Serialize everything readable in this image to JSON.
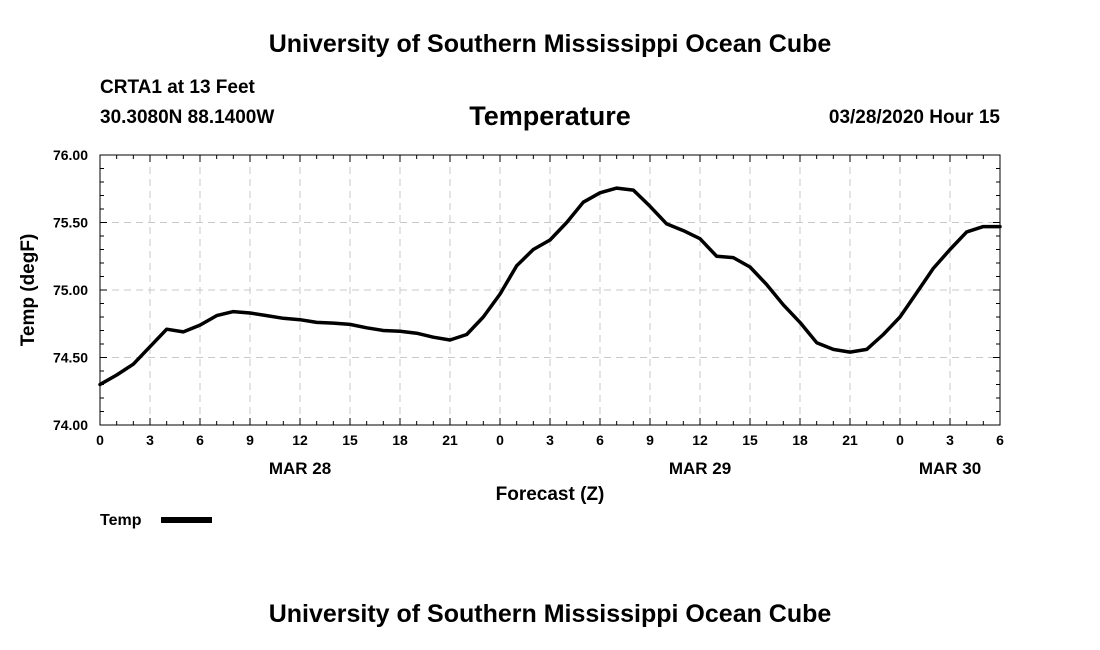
{
  "header": {
    "title": "University of Southern Mississippi Ocean Cube",
    "station": "CRTA1 at 13 Feet",
    "coords": "30.3080N 88.1400W",
    "datetime": "03/28/2020 Hour 15"
  },
  "footer": {
    "title": "University of Southern Mississippi Ocean Cube"
  },
  "chart_data": {
    "type": "line",
    "title": "Temperature",
    "xlabel": "Forecast (Z)",
    "ylabel": "Temp (degF)",
    "ylim": [
      74.0,
      76.0
    ],
    "xlim": [
      0,
      54
    ],
    "y_ticks": [
      74.0,
      74.5,
      75.0,
      75.5,
      76.0
    ],
    "y_tick_labels": [
      "74.00",
      "74.50",
      "75.00",
      "75.50",
      "76.00"
    ],
    "x_tick_hours": [
      0,
      3,
      6,
      9,
      12,
      15,
      18,
      21,
      24,
      27,
      30,
      33,
      36,
      39,
      42,
      45,
      48,
      51,
      54
    ],
    "x_tick_labels": [
      "0",
      "3",
      "6",
      "9",
      "12",
      "15",
      "18",
      "21",
      "0",
      "3",
      "6",
      "9",
      "12",
      "15",
      "18",
      "21",
      "0",
      "3",
      "6"
    ],
    "day_labels": [
      {
        "label": "MAR 28",
        "hour": 12
      },
      {
        "label": "MAR 29",
        "hour": 36
      },
      {
        "label": "MAR 30",
        "hour": 51
      }
    ],
    "grid": true,
    "legend_position": "bottom-left",
    "series": [
      {
        "name": "Temp",
        "color": "#000000",
        "x": [
          0,
          1,
          2,
          3,
          4,
          5,
          6,
          7,
          8,
          9,
          10,
          11,
          12,
          13,
          14,
          15,
          16,
          17,
          18,
          19,
          20,
          21,
          22,
          23,
          24,
          25,
          26,
          27,
          28,
          29,
          30,
          31,
          32,
          33,
          34,
          35,
          36,
          37,
          38,
          39,
          40,
          41,
          42,
          43,
          44,
          45,
          46,
          47,
          48,
          49,
          50,
          51,
          52,
          53,
          54
        ],
        "values": [
          74.3,
          74.37,
          74.45,
          74.58,
          74.71,
          74.69,
          74.74,
          74.81,
          74.84,
          74.83,
          74.81,
          74.79,
          74.78,
          74.76,
          74.755,
          74.745,
          74.72,
          74.7,
          74.695,
          74.68,
          74.65,
          74.63,
          74.67,
          74.8,
          74.97,
          75.18,
          75.3,
          75.37,
          75.5,
          75.65,
          75.72,
          75.755,
          75.74,
          75.62,
          75.49,
          75.44,
          75.38,
          75.25,
          75.24,
          75.17,
          75.04,
          74.89,
          74.76,
          74.61,
          74.56,
          74.54,
          74.56,
          74.67,
          74.8,
          74.98,
          75.16,
          75.3,
          75.43,
          75.47,
          75.47
        ]
      }
    ]
  }
}
